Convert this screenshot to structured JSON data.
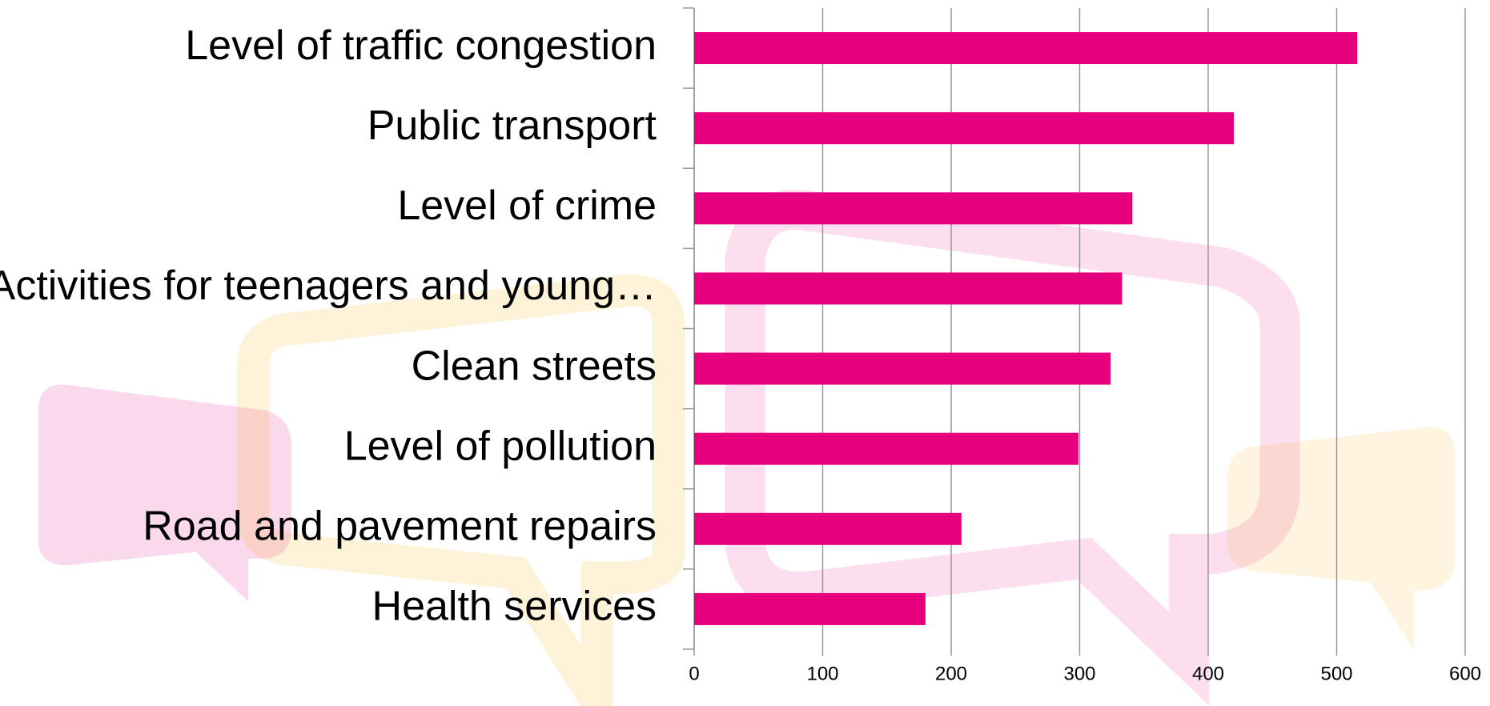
{
  "chart_data": {
    "type": "bar",
    "orientation": "horizontal",
    "categories": [
      "Level of traffic congestion",
      "Public transport",
      "Level of crime",
      "Activities for teenagers and young…",
      "Clean streets",
      "Level of pollution",
      "Road and pavement repairs",
      "Health services"
    ],
    "values": [
      516,
      420,
      341,
      333,
      324,
      299,
      208,
      180
    ],
    "color": "#e6007e",
    "xlim": [
      0,
      600
    ],
    "xticks": [
      0,
      100,
      200,
      300,
      400,
      500,
      600
    ],
    "grid": true
  }
}
